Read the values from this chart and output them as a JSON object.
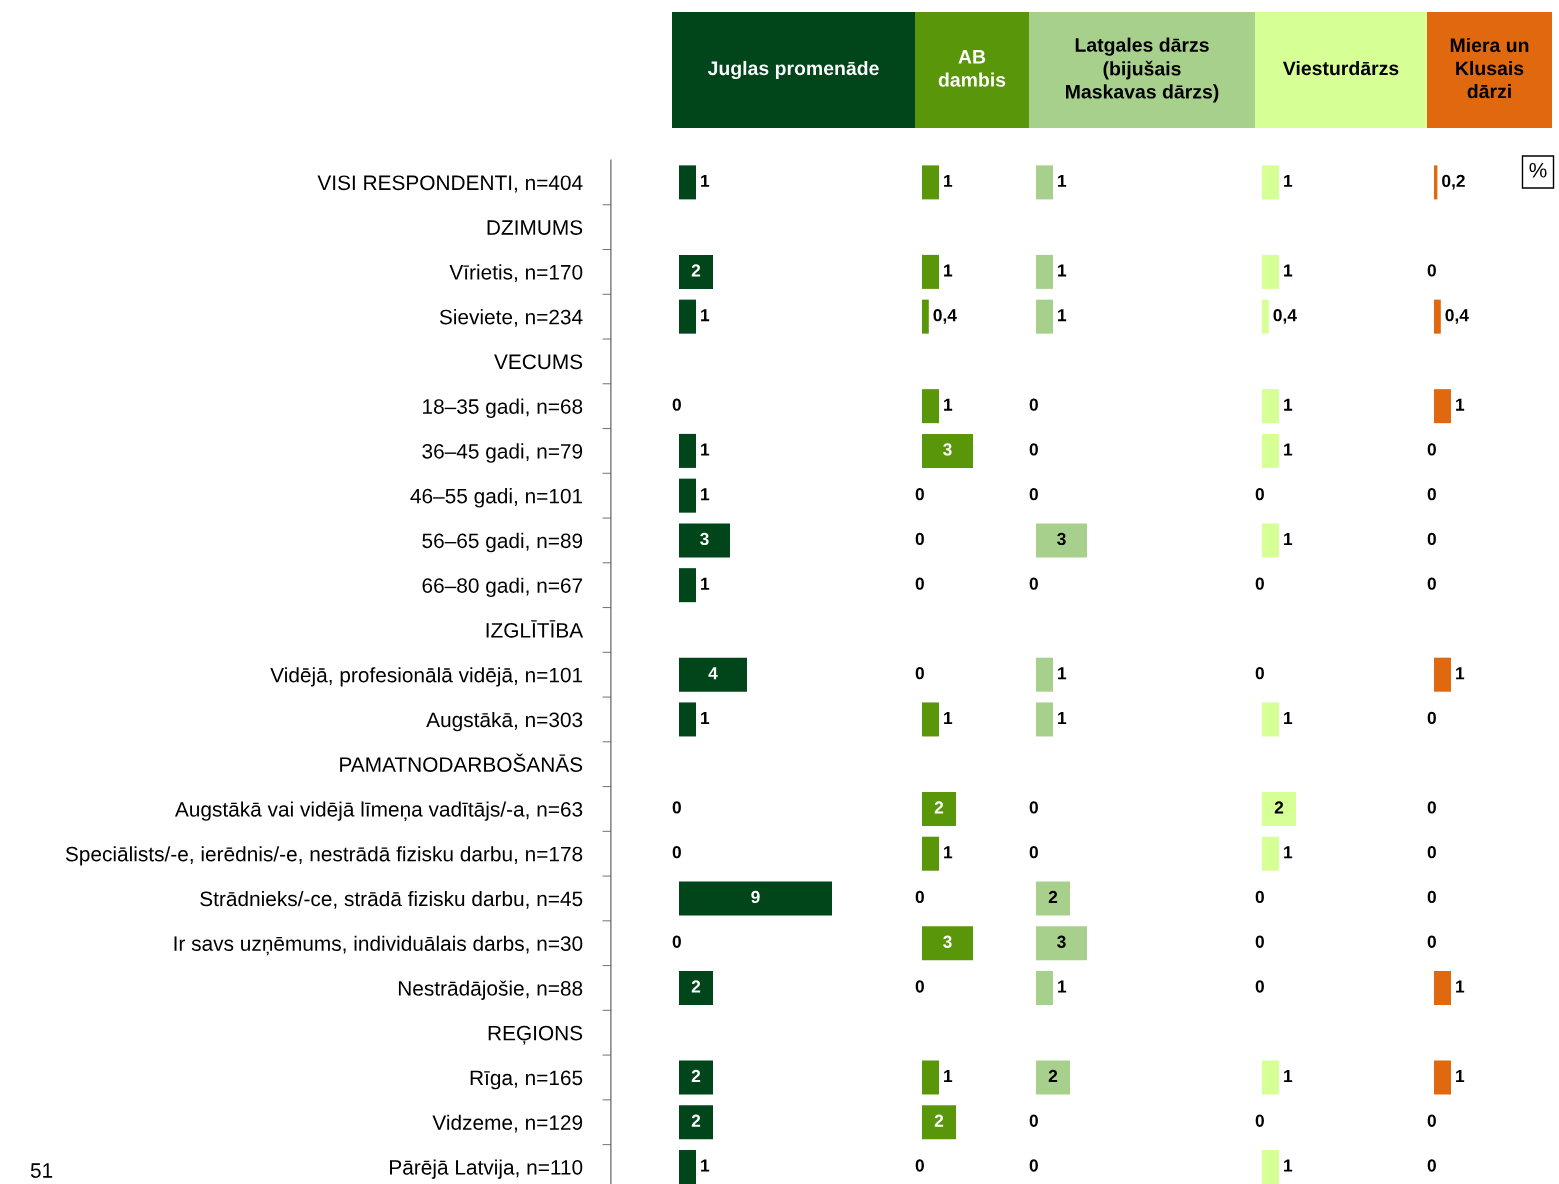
{
  "chart_data": [
    {
      "type": "bar",
      "orientation": "horizontal",
      "title": "Juglas promenāde",
      "color": "#00461a",
      "tick_labels": "y",
      "legend": false,
      "grid": false,
      "categories": [
        "VISI RESPONDENTI, n=404",
        "DZIMUMS",
        "Vīrietis, n=170",
        "Sieviete, n=234",
        "VECUMS",
        "18–35 gadi, n=68",
        "36–45 gadi, n=79",
        "46–55 gadi, n=101",
        "56–65 gadi, n=89",
        "66–80 gadi, n=67",
        "IZGLĪTĪBA",
        "Vidējā, profesionālā vidējā, n=101",
        "Augstākā, n=303",
        "PAMATNODARBOŠANĀS",
        "Augstākā vai vidējā līmeņa vadītājs/-a, n=63",
        "Speciālists/-e, ierēdnis/-e, nestrādā fizisku darbu, n=178",
        "Strādnieks/-ce, strādā fizisku darbu, n=45",
        "Ir savs uzņēmums, individuālais darbs, n=30",
        "Nestrādājošie, n=88",
        "REĢIONS",
        "Rīga, n=165",
        "Vidzeme, n=129",
        "Pārējā Latvija, n=110"
      ],
      "values": [
        1,
        null,
        2,
        1,
        null,
        0,
        1,
        1,
        3,
        1,
        null,
        4,
        1,
        null,
        0,
        0,
        9,
        0,
        2,
        null,
        2,
        2,
        1
      ],
      "value_labels": [
        "1",
        null,
        "2",
        "1",
        null,
        "0",
        "1",
        "1",
        "3",
        "1",
        null,
        "4",
        "1",
        null,
        "0",
        "0",
        "9",
        "0",
        "2",
        null,
        "2",
        "2",
        "1"
      ],
      "annotations": [
        "51"
      ]
    },
    {
      "type": "bar",
      "orientation": "horizontal",
      "title": "AB\ndambis",
      "color": "#5a960a",
      "tick_labels": false,
      "legend": false,
      "grid": false,
      "categories": [
        null,
        null,
        null,
        null,
        null,
        null,
        null,
        null,
        null,
        null,
        null,
        null,
        null,
        null,
        null,
        null,
        null,
        null,
        null,
        null,
        null,
        null,
        null
      ],
      "values": [
        1,
        null,
        1,
        0.4,
        null,
        1,
        3,
        0,
        0,
        0,
        null,
        0,
        1,
        null,
        2,
        1,
        0,
        3,
        0,
        null,
        1,
        2,
        0
      ],
      "value_labels": [
        "1",
        null,
        "1",
        "0,4",
        null,
        "1",
        "3",
        "0",
        "0",
        "0",
        null,
        "0",
        "1",
        null,
        "2",
        "1",
        "0",
        "3",
        "0",
        null,
        "1",
        "2",
        "0"
      ]
    },
    {
      "type": "bar",
      "orientation": "horizontal",
      "title": "Latgales dārzs\n(bijušais\nMaskavas dārzs)",
      "color": "#a8d08d",
      "tick_labels": false,
      "legend": false,
      "grid": false,
      "categories": [
        null,
        null,
        null,
        null,
        null,
        null,
        null,
        null,
        null,
        null,
        null,
        null,
        null,
        null,
        null,
        null,
        null,
        null,
        null,
        null,
        null,
        null,
        null
      ],
      "values": [
        1,
        null,
        1,
        1,
        null,
        0,
        0,
        0,
        3,
        0,
        null,
        1,
        1,
        null,
        0,
        0,
        2,
        3,
        1,
        null,
        2,
        0,
        0
      ],
      "value_labels": [
        "1",
        null,
        "1",
        "1",
        null,
        "0",
        "0",
        "0",
        "3",
        "0",
        null,
        "1",
        "1",
        null,
        "0",
        "0",
        "2",
        "3",
        "1",
        null,
        "2",
        "0",
        "0"
      ]
    },
    {
      "type": "bar",
      "orientation": "horizontal",
      "title": "Viesturdārzs",
      "color": "#d6ff96",
      "tick_labels": false,
      "legend": false,
      "grid": false,
      "categories": [
        null,
        null,
        null,
        null,
        null,
        null,
        null,
        null,
        null,
        null,
        null,
        null,
        null,
        null,
        null,
        null,
        null,
        null,
        null,
        null,
        null,
        null,
        null
      ],
      "values": [
        1,
        null,
        1,
        0.4,
        null,
        1,
        1,
        0,
        1,
        0,
        null,
        0,
        1,
        null,
        2,
        1,
        0,
        0,
        0,
        null,
        1,
        0,
        1
      ],
      "value_labels": [
        "1",
        null,
        "1",
        "0,4",
        null,
        "1",
        "1",
        "0",
        "1",
        "0",
        null,
        "0",
        "1",
        null,
        "2",
        "1",
        "0",
        "0",
        "0",
        null,
        "1",
        "0",
        "1"
      ]
    },
    {
      "type": "bar",
      "orientation": "horizontal",
      "title": "Miera un\nKlusais\ndārzi",
      "color": "#e0680e",
      "tick_labels": false,
      "legend": false,
      "grid": false,
      "categories": [
        null,
        null,
        null,
        null,
        null,
        null,
        null,
        null,
        null,
        null,
        null,
        null,
        null,
        null,
        null,
        null,
        null,
        null,
        null,
        null,
        null,
        null,
        null
      ],
      "values": [
        0.2,
        null,
        0,
        0.4,
        null,
        1,
        0,
        0,
        0,
        0,
        null,
        1,
        0,
        null,
        0,
        0,
        0,
        0,
        1,
        null,
        1,
        0,
        0
      ],
      "value_labels": [
        "0,2",
        null,
        "0",
        "0,4",
        null,
        "1",
        "0",
        "0",
        "0",
        "0",
        null,
        "1",
        "0",
        null,
        "0",
        "0",
        "0",
        "0",
        "1",
        null,
        "1",
        "0",
        "0"
      ],
      "annotations": [
        "%"
      ]
    }
  ]
}
